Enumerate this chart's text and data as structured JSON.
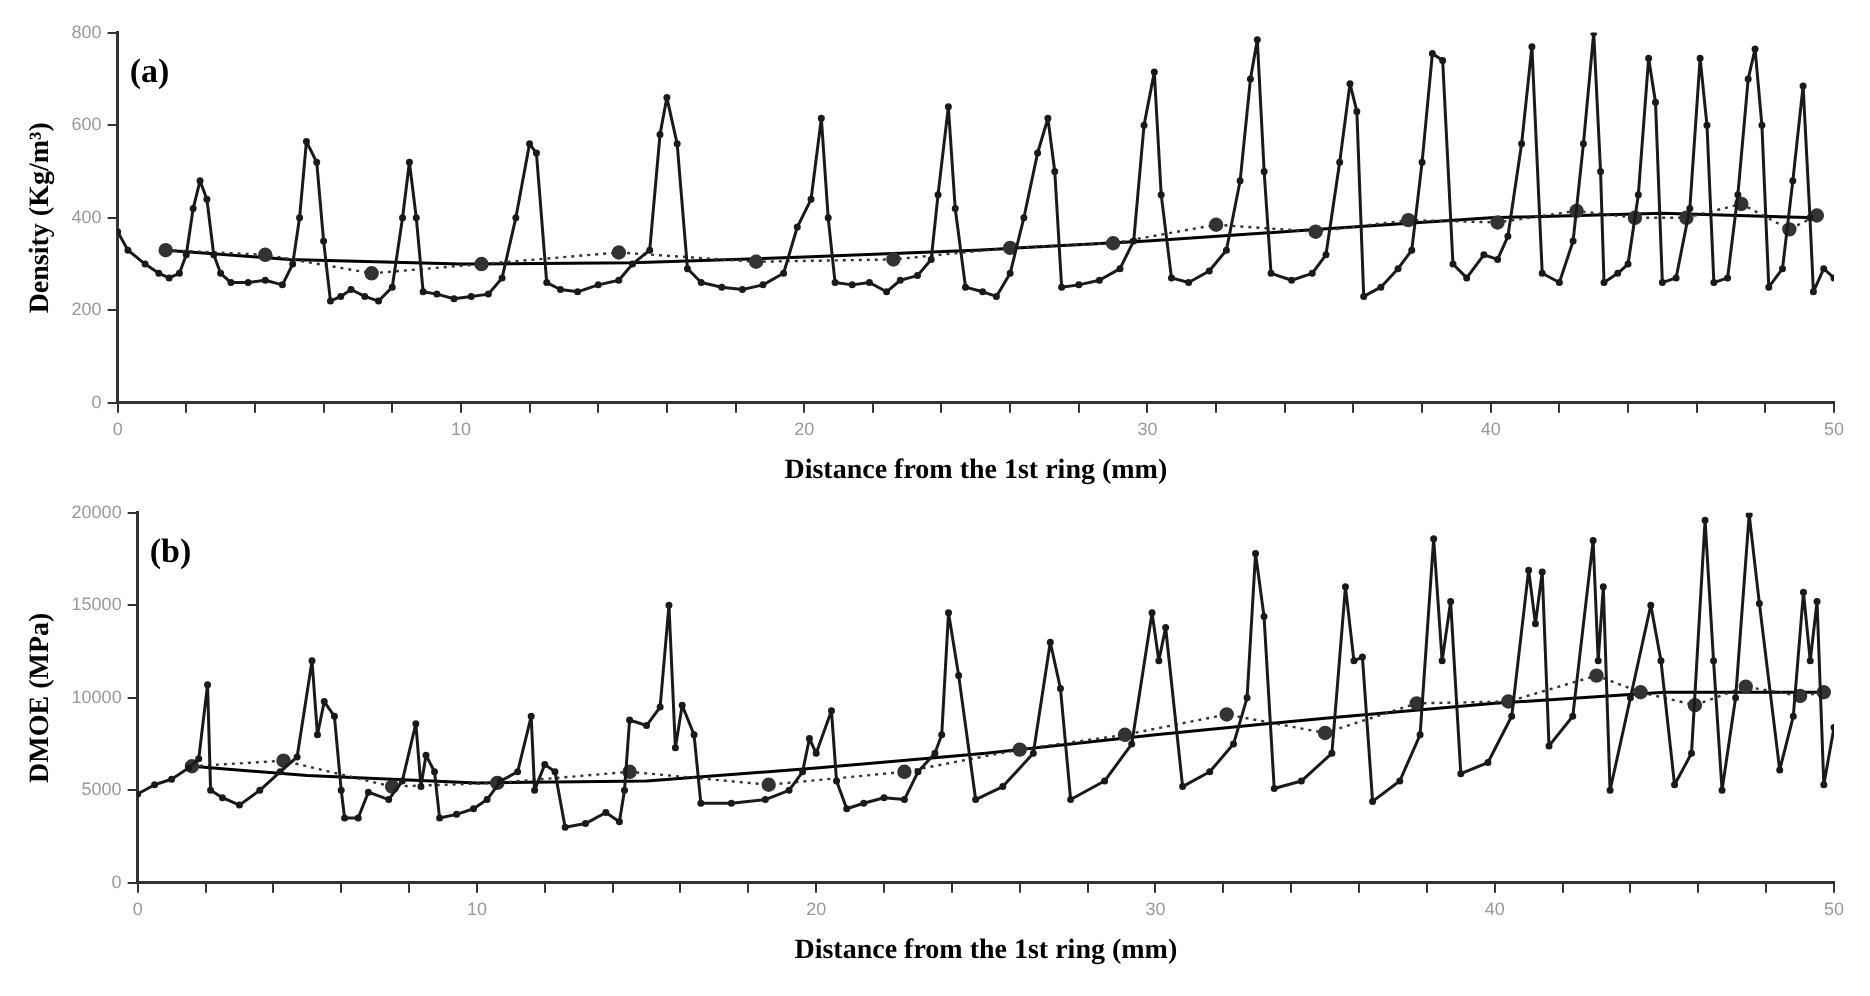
{
  "chart_data": [
    {
      "type": "line",
      "xlabel": "Distance from the 1st ring (mm)",
      "ylabel": "Density (Kg/m³)",
      "annotations": [
        "(a)"
      ],
      "xlim": [
        0,
        50
      ],
      "ylim": [
        0,
        800
      ],
      "xticks": [
        0,
        {
          "value": 2,
          "label": null
        },
        {
          "value": 4,
          "label": null
        },
        {
          "value": 6,
          "label": null
        },
        {
          "value": 8,
          "label": null
        },
        10,
        {
          "value": 12,
          "label": null
        },
        {
          "value": 14,
          "label": null
        },
        {
          "value": 16,
          "label": null
        },
        {
          "value": 18,
          "label": null
        },
        20,
        {
          "value": 22,
          "label": null
        },
        {
          "value": 24,
          "label": null
        },
        {
          "value": 26,
          "label": null
        },
        {
          "value": 28,
          "label": null
        },
        30,
        {
          "value": 32,
          "label": null
        },
        {
          "value": 34,
          "label": null
        },
        {
          "value": 36,
          "label": null
        },
        {
          "value": 38,
          "label": null
        },
        40,
        {
          "value": 42,
          "label": null
        },
        {
          "value": 44,
          "label": null
        },
        {
          "value": 46,
          "label": null
        },
        {
          "value": 48,
          "label": null
        },
        50
      ],
      "yticks": [
        0,
        200,
        400,
        600,
        800
      ],
      "grid": false,
      "legend": false,
      "series": [
        {
          "color": "#1a1a1a",
          "marker": "circle",
          "line_style": "solid",
          "x": [
            0,
            0.3,
            0.8,
            1.2,
            1.5,
            1.8,
            2.0,
            2.2,
            2.4,
            2.6,
            2.8,
            3.0,
            3.3,
            3.8,
            4.3,
            4.8,
            5.1,
            5.3,
            5.5,
            5.8,
            6.0,
            6.2,
            6.5,
            6.8,
            7.2,
            7.6,
            8.0,
            8.3,
            8.5,
            8.7,
            8.9,
            9.3,
            9.8,
            10.3,
            10.8,
            11.2,
            11.6,
            12.0,
            12.2,
            12.5,
            12.9,
            13.4,
            14.0,
            14.6,
            15.0,
            15.5,
            15.8,
            16.0,
            16.3,
            16.6,
            17.0,
            17.6,
            18.2,
            18.8,
            19.4,
            19.8,
            20.2,
            20.5,
            20.7,
            20.9,
            21.4,
            21.9,
            22.4,
            22.8,
            23.3,
            23.7,
            23.9,
            24.2,
            24.4,
            24.7,
            25.2,
            25.6,
            26.0,
            26.4,
            26.8,
            27.1,
            27.3,
            27.5,
            28.0,
            28.6,
            29.2,
            29.6,
            29.9,
            30.2,
            30.4,
            30.7,
            31.2,
            31.8,
            32.3,
            32.7,
            33.0,
            33.2,
            33.4,
            33.6,
            34.2,
            34.8,
            35.2,
            35.6,
            35.9,
            36.1,
            36.3,
            36.8,
            37.3,
            37.7,
            38.0,
            38.3,
            38.6,
            38.9,
            39.3,
            39.8,
            40.2,
            40.5,
            40.9,
            41.2,
            41.5,
            42.0,
            42.4,
            42.7,
            43.0,
            43.2,
            43.3,
            43.7,
            44.0,
            44.3,
            44.6,
            44.8,
            45.0,
            45.4,
            45.8,
            46.1,
            46.3,
            46.5,
            46.9,
            47.2,
            47.5,
            47.7,
            47.9,
            48.1,
            48.5,
            48.8,
            49.1,
            49.3,
            49.4,
            49.7,
            50.0
          ],
          "values": [
            370,
            330,
            300,
            280,
            270,
            280,
            320,
            420,
            480,
            440,
            320,
            280,
            260,
            260,
            265,
            255,
            300,
            400,
            565,
            520,
            350,
            220,
            230,
            245,
            230,
            220,
            250,
            400,
            520,
            400,
            240,
            235,
            225,
            230,
            235,
            270,
            400,
            560,
            540,
            260,
            245,
            240,
            255,
            265,
            300,
            330,
            580,
            660,
            560,
            290,
            260,
            250,
            245,
            255,
            280,
            380,
            440,
            615,
            400,
            260,
            255,
            260,
            240,
            265,
            275,
            310,
            450,
            640,
            420,
            250,
            240,
            230,
            280,
            400,
            540,
            615,
            500,
            250,
            255,
            265,
            290,
            350,
            600,
            715,
            450,
            270,
            260,
            285,
            330,
            480,
            700,
            785,
            500,
            280,
            265,
            280,
            320,
            520,
            690,
            630,
            230,
            250,
            290,
            330,
            520,
            755,
            740,
            300,
            270,
            320,
            310,
            360,
            560,
            770,
            280,
            260,
            350,
            560,
            800,
            500,
            260,
            280,
            300,
            450,
            745,
            650,
            260,
            270,
            420,
            745,
            600,
            260,
            270,
            450,
            700,
            765,
            600,
            250,
            290,
            480,
            685,
            400,
            240,
            290,
            270
          ]
        },
        {
          "color": "#333333",
          "marker": "circle",
          "line_style": "dotted",
          "x": [
            1.4,
            4.3,
            7.4,
            10.6,
            14.6,
            18.6,
            22.6,
            26.0,
            29.0,
            32.0,
            34.9,
            37.6,
            40.2,
            42.5,
            44.2,
            45.7,
            47.3,
            48.7,
            49.5
          ],
          "values": [
            330,
            320,
            280,
            300,
            325,
            305,
            310,
            335,
            345,
            385,
            370,
            395,
            390,
            415,
            400,
            400,
            430,
            375,
            405
          ]
        },
        {
          "color": "#000000",
          "marker": "none",
          "line_style": "solid",
          "x": [
            1.4,
            5,
            10,
            15,
            20,
            25,
            30,
            35,
            40,
            45,
            49.5
          ],
          "values": [
            330,
            310,
            300,
            303,
            315,
            330,
            350,
            375,
            400,
            410,
            400
          ]
        }
      ]
    },
    {
      "type": "line",
      "xlabel": "Distance from the 1st ring (mm)",
      "ylabel": "DMOE (MPa)",
      "annotations": [
        "(b)"
      ],
      "xlim": [
        0,
        50
      ],
      "ylim": [
        0,
        20000
      ],
      "xticks": [
        0,
        {
          "value": 2,
          "label": null
        },
        {
          "value": 4,
          "label": null
        },
        {
          "value": 6,
          "label": null
        },
        {
          "value": 8,
          "label": null
        },
        10,
        {
          "value": 12,
          "label": null
        },
        {
          "value": 14,
          "label": null
        },
        {
          "value": 16,
          "label": null
        },
        {
          "value": 18,
          "label": null
        },
        20,
        {
          "value": 22,
          "label": null
        },
        {
          "value": 24,
          "label": null
        },
        {
          "value": 26,
          "label": null
        },
        {
          "value": 28,
          "label": null
        },
        30,
        {
          "value": 32,
          "label": null
        },
        {
          "value": 34,
          "label": null
        },
        {
          "value": 36,
          "label": null
        },
        {
          "value": 38,
          "label": null
        },
        40,
        {
          "value": 42,
          "label": null
        },
        {
          "value": 44,
          "label": null
        },
        {
          "value": 46,
          "label": null
        },
        {
          "value": 48,
          "label": null
        },
        50
      ],
      "yticks": [
        0,
        5000,
        10000,
        15000,
        20000
      ],
      "grid": false,
      "legend": false,
      "series": [
        {
          "color": "#1a1a1a",
          "marker": "circle",
          "line_style": "solid",
          "x": [
            0,
            0.5,
            1.0,
            1.5,
            1.8,
            2.06,
            2.15,
            2.5,
            3.0,
            3.6,
            4.2,
            4.7,
            5.14,
            5.3,
            5.5,
            5.8,
            6.0,
            6.1,
            6.5,
            6.8,
            7.4,
            7.8,
            8.2,
            8.35,
            8.5,
            8.75,
            8.9,
            9.4,
            9.9,
            10.3,
            10.7,
            11.2,
            11.6,
            11.7,
            12.0,
            12.3,
            12.6,
            13.2,
            13.8,
            14.2,
            14.35,
            14.5,
            15.0,
            15.4,
            15.66,
            15.85,
            16.05,
            16.4,
            16.6,
            17.5,
            18.5,
            19.2,
            19.6,
            19.8,
            20.0,
            20.45,
            20.6,
            20.9,
            21.4,
            22.0,
            22.6,
            23.0,
            23.5,
            23.7,
            23.9,
            24.2,
            24.7,
            25.5,
            26.4,
            26.9,
            27.2,
            27.5,
            28.5,
            29.3,
            29.9,
            30.1,
            30.3,
            30.8,
            31.6,
            32.3,
            32.7,
            32.95,
            33.2,
            33.5,
            34.3,
            35.2,
            35.6,
            35.85,
            36.1,
            36.4,
            37.2,
            37.8,
            38.2,
            38.45,
            38.7,
            39.0,
            39.8,
            40.5,
            41.0,
            41.2,
            41.4,
            41.6,
            42.3,
            42.9,
            43.05,
            43.2,
            43.4,
            44.0,
            44.6,
            44.9,
            45.3,
            45.8,
            46.2,
            46.45,
            46.7,
            47.1,
            47.5,
            47.8,
            48.4,
            48.8,
            49.1,
            49.3,
            49.5,
            49.7,
            50.0
          ],
          "values": [
            4800,
            5300,
            5600,
            6200,
            6700,
            10700,
            5000,
            4600,
            4200,
            5000,
            6000,
            6800,
            12000,
            8000,
            9800,
            9000,
            5000,
            3500,
            3500,
            4900,
            4500,
            5500,
            8600,
            5200,
            6900,
            6000,
            3500,
            3700,
            4000,
            4500,
            5500,
            6000,
            9000,
            5000,
            6400,
            6000,
            3000,
            3200,
            3800,
            3300,
            5000,
            8800,
            8500,
            9500,
            15000,
            7300,
            9600,
            8000,
            4300,
            4300,
            4500,
            5000,
            6000,
            7800,
            7000,
            9300,
            5500,
            4000,
            4300,
            4600,
            4500,
            6000,
            7000,
            8000,
            14600,
            11200,
            4500,
            5200,
            7000,
            13000,
            10500,
            4500,
            5500,
            7500,
            14600,
            12000,
            13800,
            5200,
            6000,
            7500,
            10000,
            17800,
            14400,
            5100,
            5500,
            7000,
            16000,
            12000,
            12200,
            4400,
            5500,
            8000,
            18600,
            12000,
            15200,
            5900,
            6500,
            9000,
            16900,
            14000,
            16800,
            7400,
            9000,
            18500,
            12000,
            16000,
            5000,
            10000,
            15000,
            12000,
            5300,
            7000,
            19600,
            12000,
            5000,
            10000,
            19900,
            15100,
            6100,
            9000,
            15700,
            12000,
            15200,
            5300,
            8400
          ]
        },
        {
          "color": "#333333",
          "marker": "circle",
          "line_style": "dotted",
          "x": [
            1.6,
            4.3,
            7.5,
            10.6,
            14.5,
            18.6,
            22.6,
            26.0,
            29.1,
            32.1,
            35.0,
            37.7,
            40.4,
            43.0,
            44.3,
            45.9,
            47.4,
            49.0,
            49.7
          ],
          "values": [
            6300,
            6600,
            5200,
            5400,
            6000,
            5300,
            6000,
            7200,
            8000,
            9100,
            8100,
            9700,
            9800,
            11200,
            10300,
            9600,
            10600,
            10100,
            10300
          ]
        },
        {
          "color": "#000000",
          "marker": "none",
          "line_style": "solid",
          "x": [
            1.6,
            5,
            10,
            15,
            20,
            25,
            30,
            35,
            40,
            45,
            49.7
          ],
          "values": [
            6300,
            5800,
            5400,
            5500,
            6200,
            7000,
            8000,
            8900,
            9700,
            10300,
            10300
          ]
        }
      ]
    }
  ]
}
